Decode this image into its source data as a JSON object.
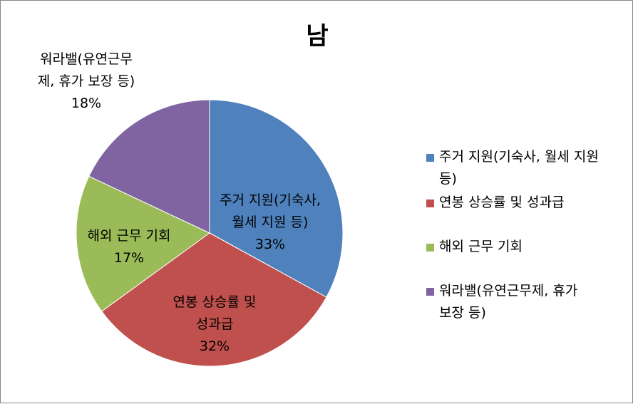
{
  "chart_data": {
    "type": "pie",
    "title": "남",
    "categories": [
      "주거 지원(기숙사, 월세 지원 등)",
      "연봉 상승률 및 성과급",
      "해외 근무 기회",
      "워라밸(유연근무제, 휴가 보장 등)"
    ],
    "values": [
      33,
      32,
      17,
      18
    ],
    "value_unit": "%",
    "colors": [
      "#4F81BD",
      "#C0504D",
      "#9BBB59",
      "#8064A2"
    ],
    "legend_position": "right",
    "slice_labels": [
      {
        "lines": [
          "주거 지원(기숙사,",
          "월세 지원 등)"
        ],
        "pct": "33%"
      },
      {
        "lines": [
          "연봉 상승률 및",
          "성과급"
        ],
        "pct": "32%"
      },
      {
        "lines": [
          "해외 근무 기회"
        ],
        "pct": "17%"
      },
      {
        "lines": [
          "워라밸(유연근무",
          "제, 휴가 보장 등)"
        ],
        "pct": "18%"
      }
    ],
    "legend_entries": [
      {
        "lines": [
          "주거 지원(기숙사, 월세 지원",
          "등)"
        ]
      },
      {
        "lines": [
          "연봉 상승률 및 성과급"
        ]
      },
      {
        "lines": [
          "해외 근무 기회"
        ]
      },
      {
        "lines": [
          "워라밸(유연근무제, 휴가",
          "보장 등)"
        ]
      }
    ]
  }
}
